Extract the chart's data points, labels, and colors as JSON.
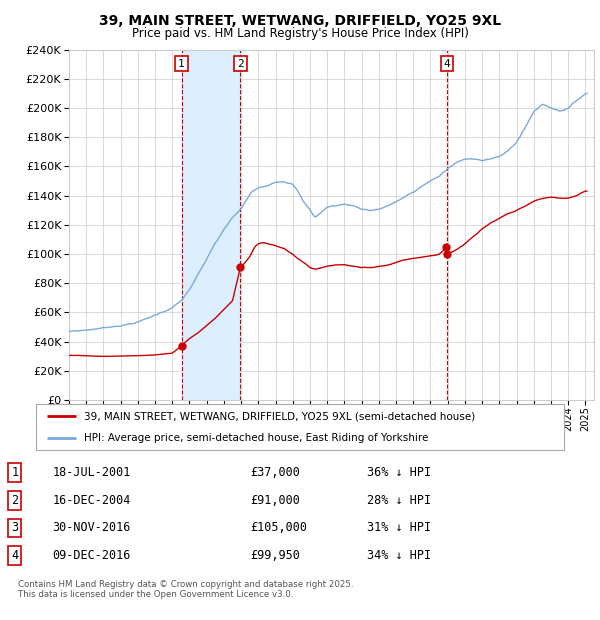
{
  "title": "39, MAIN STREET, WETWANG, DRIFFIELD, YO25 9XL",
  "subtitle": "Price paid vs. HM Land Registry's House Price Index (HPI)",
  "legend_red": "39, MAIN STREET, WETWANG, DRIFFIELD, YO25 9XL (semi-detached house)",
  "legend_blue": "HPI: Average price, semi-detached house, East Riding of Yorkshire",
  "footer": "Contains HM Land Registry data © Crown copyright and database right 2025.\nThis data is licensed under the Open Government Licence v3.0.",
  "transactions": [
    {
      "num": 1,
      "date": "18-JUL-2001",
      "price": "£37,000",
      "hpi": "36% ↓ HPI"
    },
    {
      "num": 2,
      "date": "16-DEC-2004",
      "price": "£91,000",
      "hpi": "28% ↓ HPI"
    },
    {
      "num": 3,
      "date": "30-NOV-2016",
      "price": "£105,000",
      "hpi": "31% ↓ HPI"
    },
    {
      "num": 4,
      "date": "09-DEC-2016",
      "price": "£99,950",
      "hpi": "34% ↓ HPI"
    }
  ],
  "transaction_dates_num": [
    2001.54,
    2004.96,
    2016.91,
    2016.94
  ],
  "transaction_prices": [
    37000,
    91000,
    105000,
    99950
  ],
  "ylim": [
    0,
    240000
  ],
  "yticks": [
    0,
    20000,
    40000,
    60000,
    80000,
    100000,
    120000,
    140000,
    160000,
    180000,
    200000,
    220000,
    240000
  ],
  "red_color": "#cc0000",
  "blue_color": "#7aabdb",
  "shade_color": "#ddeeff",
  "background_color": "#ffffff",
  "grid_color": "#cccccc"
}
